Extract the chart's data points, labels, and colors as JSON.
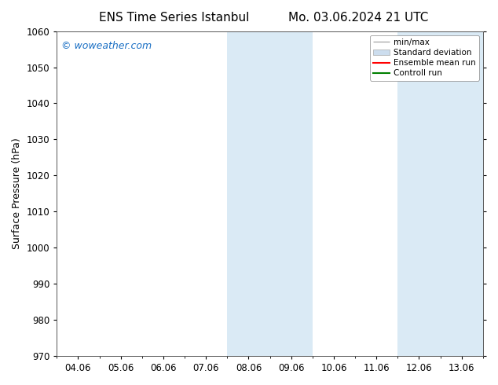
{
  "title_left": "ENS Time Series Istanbul",
  "title_right": "Mo. 03.06.2024 21 UTC",
  "ylabel": "Surface Pressure (hPa)",
  "ylim": [
    970,
    1060
  ],
  "yticks": [
    970,
    980,
    990,
    1000,
    1010,
    1020,
    1030,
    1040,
    1050,
    1060
  ],
  "xtick_labels": [
    "04.06",
    "05.06",
    "06.06",
    "07.06",
    "08.06",
    "09.06",
    "10.06",
    "11.06",
    "12.06",
    "13.06"
  ],
  "xlim": [
    -0.5,
    9.5
  ],
  "shaded_bands": [
    {
      "x_start": 3.5,
      "x_end": 4.5
    },
    {
      "x_start": 4.5,
      "x_end": 5.5
    },
    {
      "x_start": 7.5,
      "x_end": 8.5
    },
    {
      "x_start": 8.5,
      "x_end": 9.5
    }
  ],
  "shaded_color": "#daeaf5",
  "background_color": "#ffffff",
  "watermark_text": "© woweather.com",
  "watermark_color": "#1a6fc4",
  "legend_items": [
    {
      "label": "min/max",
      "color": "#aaaaaa",
      "style": "minmax"
    },
    {
      "label": "Standard deviation",
      "color": "#ccddee",
      "style": "patch"
    },
    {
      "label": "Ensemble mean run",
      "color": "#ff0000",
      "style": "line",
      "lw": 1.5
    },
    {
      "label": "Controll run",
      "color": "#008000",
      "style": "line",
      "lw": 1.5
    }
  ],
  "title_fontsize": 11,
  "axis_fontsize": 9,
  "tick_fontsize": 8.5,
  "legend_fontsize": 7.5,
  "watermark_fontsize": 9
}
